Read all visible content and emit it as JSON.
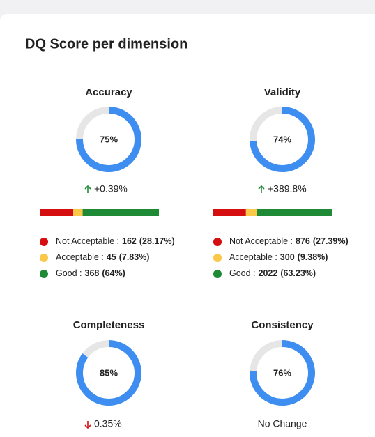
{
  "title": "DQ Score per dimension",
  "dimensions": [
    {
      "name": "Accuracy",
      "score": 75,
      "score_label": "75%",
      "change": "+0.39%",
      "trend": "up",
      "breakdown": [
        {
          "label": "Not Acceptable :",
          "count": 162,
          "percent": "(28.17%)",
          "color": "#d50f0f"
        },
        {
          "label": "Acceptable :",
          "count": 45,
          "percent": "(7.83%)",
          "color": "#fcc84a"
        },
        {
          "label": "Good :",
          "count": 368,
          "percent": "(64%)",
          "color": "#1f8a35"
        }
      ]
    },
    {
      "name": "Validity",
      "score": 74,
      "score_label": "74%",
      "change": "+389.8%",
      "trend": "up",
      "breakdown": [
        {
          "label": "Not Acceptable :",
          "count": 876,
          "percent": "(27.39%)",
          "color": "#d50f0f"
        },
        {
          "label": "Acceptable :",
          "count": 300,
          "percent": "(9.38%)",
          "color": "#fcc84a"
        },
        {
          "label": "Good :",
          "count": 2022,
          "percent": "(63.23%)",
          "color": "#1f8a35"
        }
      ]
    },
    {
      "name": "Completeness",
      "score": 85,
      "score_label": "85%",
      "change": "0.35%",
      "trend": "down",
      "breakdown": []
    },
    {
      "name": "Consistency",
      "score": 76,
      "score_label": "76%",
      "change": "No Change",
      "trend": "none",
      "breakdown": []
    }
  ]
}
